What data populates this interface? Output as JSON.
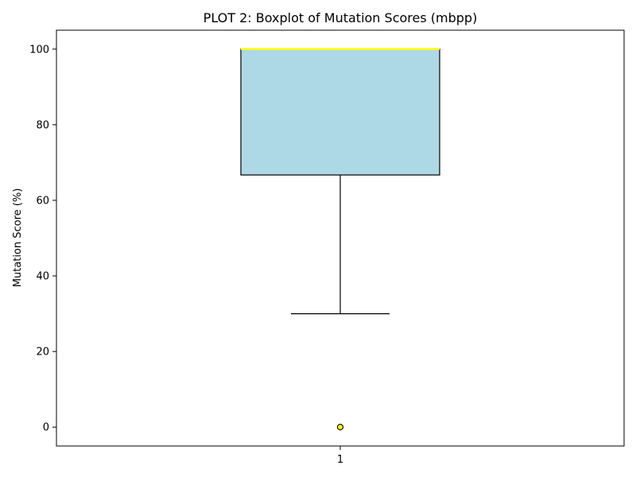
{
  "chart_data": {
    "type": "boxplot",
    "title": "PLOT 2: Boxplot of Mutation Scores (mbpp)",
    "xlabel": "",
    "ylabel": "Mutation Score (%)",
    "ylim": [
      -5,
      105
    ],
    "yticks": [
      0,
      20,
      40,
      60,
      80,
      100
    ],
    "categories": [
      "1"
    ],
    "boxes": [
      {
        "category": "1",
        "whisker_low": 30,
        "q1": 66.7,
        "median": 100,
        "q3": 100,
        "whisker_high": 100,
        "outliers": [
          0,
          0
        ]
      }
    ],
    "grid": false,
    "colors": {
      "box_fill": "#add8e6",
      "box_edge": "#000000",
      "median": "#ffff00",
      "flier_fill": "#ffff00",
      "flier_edge": "#000000"
    }
  }
}
